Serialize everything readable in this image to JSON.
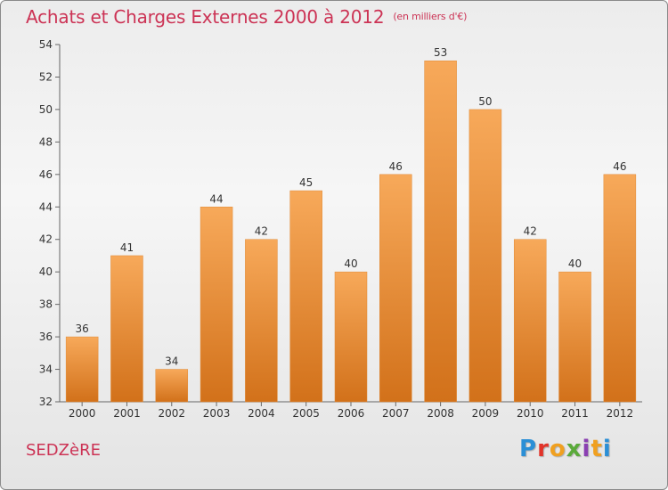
{
  "header": {
    "title": "Achats et Charges Externes 2000 à 2012",
    "subtitle": "(en milliers d'€)"
  },
  "footer": {
    "commune": "SEDZèRE",
    "logo": "Proxiti",
    "logo_colors": [
      "#2b8fd6",
      "#e2342a",
      "#f0a020",
      "#5aaa3a",
      "#8a3fb2",
      "#f0a020",
      "#2b8fd6"
    ]
  },
  "colors": {
    "bar_top": "#f7a95a",
    "bar_bottom": "#d2711a",
    "axis": "#666666",
    "grid": "#cccccc",
    "text": "#333333"
  },
  "chart_data": {
    "type": "bar",
    "title": "Achats et Charges Externes 2000 à 2012",
    "subtitle": "(en milliers d'€)",
    "categories": [
      "2000",
      "2001",
      "2002",
      "2003",
      "2004",
      "2005",
      "2006",
      "2007",
      "2008",
      "2009",
      "2010",
      "2011",
      "2012"
    ],
    "values": [
      36,
      41,
      34,
      44,
      42,
      45,
      40,
      46,
      53,
      50,
      42,
      40,
      46
    ],
    "ylim": [
      32,
      54
    ],
    "yticks": [
      32,
      34,
      36,
      38,
      40,
      42,
      44,
      46,
      48,
      50,
      52,
      54
    ],
    "grid": false,
    "data_labels": true
  }
}
